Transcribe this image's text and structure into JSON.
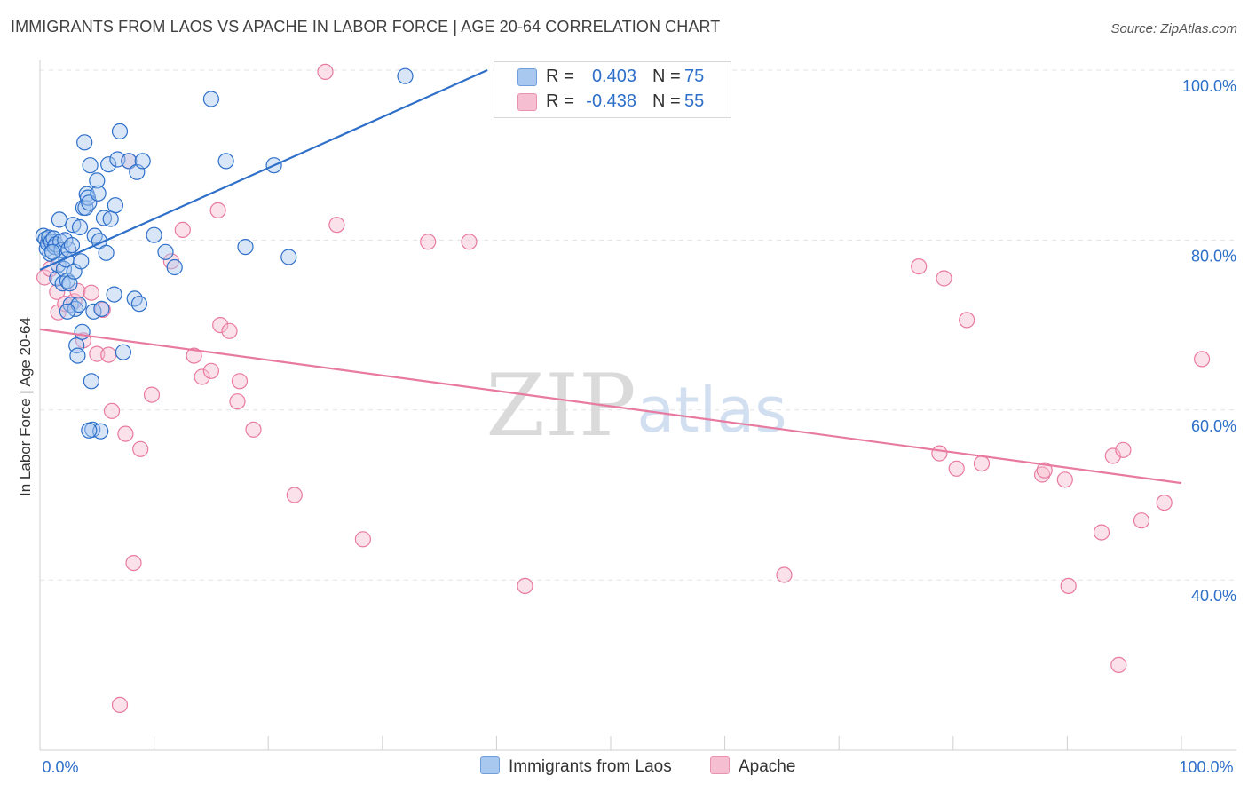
{
  "header": {
    "title": "IMMIGRANTS FROM LAOS VS APACHE IN LABOR FORCE | AGE 20-64 CORRELATION CHART",
    "source": "Source: ZipAtlas.com"
  },
  "watermark": {
    "zip": "ZIP",
    "atlas": "atlas"
  },
  "colors": {
    "blue": "#2d6fc9",
    "blue_fill": "#a9c8f0",
    "pink": "#e87aa0",
    "pink_fill": "#f6bfd1",
    "axis_label": "#2d6fc9"
  },
  "stats": [
    {
      "r_label": "R =",
      "r_value": "0.403",
      "n_label": "N =",
      "n_value": "75"
    },
    {
      "r_label": "R =",
      "r_value": "-0.438",
      "n_label": "N =",
      "n_value": "55"
    }
  ],
  "legend": {
    "series1": "Immigrants from Laos",
    "series2": "Apache"
  },
  "chart_data": {
    "type": "scatter",
    "title": "IMMIGRANTS FROM LAOS VS APACHE IN LABOR FORCE | AGE 20-64 CORRELATION CHART",
    "xlabel": "",
    "ylabel": "In Labor Force | Age 20-64",
    "xlim": [
      0,
      100
    ],
    "ylim": [
      18,
      102
    ],
    "x_tick_labels": [
      "0.0%",
      "100.0%"
    ],
    "y_ticks": [
      40,
      60,
      80,
      100
    ],
    "y_tick_labels": [
      "40.0%",
      "60.0%",
      "80.0%",
      "100.0%"
    ],
    "grid": true,
    "series": [
      {
        "name": "Immigrants from Laos",
        "r": 0.403,
        "n": 75,
        "trend": {
          "x": [
            0,
            39.2
          ],
          "y": [
            76.5,
            100
          ]
        },
        "points": [
          [
            0.3,
            80.5
          ],
          [
            0.5,
            80.1
          ],
          [
            0.6,
            79.0
          ],
          [
            0.7,
            79.6
          ],
          [
            0.8,
            80.3
          ],
          [
            0.9,
            78.4
          ],
          [
            1.0,
            79.8
          ],
          [
            1.2,
            80.2
          ],
          [
            1.3,
            79.2
          ],
          [
            1.4,
            79.5
          ],
          [
            1.5,
            75.5
          ],
          [
            1.6,
            77.1
          ],
          [
            1.7,
            82.4
          ],
          [
            1.8,
            79.8
          ],
          [
            1.9,
            78.8
          ],
          [
            2.0,
            74.9
          ],
          [
            2.1,
            76.6
          ],
          [
            2.2,
            80.0
          ],
          [
            2.3,
            77.7
          ],
          [
            2.4,
            75.2
          ],
          [
            2.5,
            78.9
          ],
          [
            2.6,
            74.9
          ],
          [
            2.7,
            72.4
          ],
          [
            2.8,
            79.4
          ],
          [
            2.9,
            81.8
          ],
          [
            3.0,
            76.3
          ],
          [
            3.1,
            71.9
          ],
          [
            3.2,
            67.6
          ],
          [
            3.3,
            66.4
          ],
          [
            3.4,
            72.4
          ],
          [
            3.5,
            81.5
          ],
          [
            3.6,
            77.5
          ],
          [
            3.7,
            69.2
          ],
          [
            3.8,
            83.8
          ],
          [
            3.9,
            91.5
          ],
          [
            4.0,
            83.8
          ],
          [
            4.1,
            85.4
          ],
          [
            4.2,
            85.0
          ],
          [
            4.3,
            84.4
          ],
          [
            4.4,
            88.8
          ],
          [
            4.5,
            63.4
          ],
          [
            4.6,
            57.7
          ],
          [
            4.7,
            71.6
          ],
          [
            4.8,
            80.5
          ],
          [
            5.0,
            87.0
          ],
          [
            5.1,
            85.5
          ],
          [
            5.2,
            79.9
          ],
          [
            5.3,
            57.5
          ],
          [
            5.4,
            71.9
          ],
          [
            5.6,
            82.6
          ],
          [
            5.8,
            78.5
          ],
          [
            6.0,
            88.9
          ],
          [
            6.2,
            82.5
          ],
          [
            6.5,
            73.6
          ],
          [
            6.8,
            89.5
          ],
          [
            7.0,
            92.8
          ],
          [
            7.3,
            66.8
          ],
          [
            7.8,
            89.3
          ],
          [
            8.3,
            73.1
          ],
          [
            8.5,
            88.0
          ],
          [
            8.7,
            72.5
          ],
          [
            9.0,
            89.3
          ],
          [
            10.0,
            80.6
          ],
          [
            11.0,
            78.6
          ],
          [
            11.8,
            76.8
          ],
          [
            15.0,
            96.6
          ],
          [
            16.3,
            89.3
          ],
          [
            18.0,
            79.2
          ],
          [
            20.5,
            88.8
          ],
          [
            21.8,
            78.0
          ],
          [
            6.6,
            84.1
          ],
          [
            1.1,
            78.6
          ],
          [
            2.4,
            71.6
          ],
          [
            4.3,
            57.6
          ],
          [
            32.0,
            99.3
          ]
        ]
      },
      {
        "name": "Apache",
        "r": -0.438,
        "n": 55,
        "trend": {
          "x": [
            0,
            100
          ],
          "y": [
            69.5,
            51.4
          ]
        },
        "points": [
          [
            0.4,
            75.6
          ],
          [
            0.9,
            76.6
          ],
          [
            1.5,
            73.9
          ],
          [
            1.6,
            71.5
          ],
          [
            2.2,
            72.5
          ],
          [
            3.0,
            72.8
          ],
          [
            3.3,
            74.0
          ],
          [
            3.8,
            68.2
          ],
          [
            4.5,
            73.8
          ],
          [
            5.0,
            66.6
          ],
          [
            5.5,
            71.8
          ],
          [
            6.0,
            66.5
          ],
          [
            6.3,
            59.9
          ],
          [
            7.0,
            25.3
          ],
          [
            7.5,
            57.2
          ],
          [
            7.8,
            89.3
          ],
          [
            8.2,
            42.0
          ],
          [
            8.8,
            55.4
          ],
          [
            9.8,
            61.8
          ],
          [
            11.5,
            77.5
          ],
          [
            12.5,
            81.2
          ],
          [
            13.5,
            66.4
          ],
          [
            14.2,
            63.9
          ],
          [
            15.0,
            64.6
          ],
          [
            15.6,
            83.5
          ],
          [
            15.8,
            70.0
          ],
          [
            16.6,
            69.3
          ],
          [
            17.3,
            61.0
          ],
          [
            17.5,
            63.4
          ],
          [
            18.7,
            57.7
          ],
          [
            22.3,
            50.0
          ],
          [
            25.0,
            99.8
          ],
          [
            26.0,
            81.8
          ],
          [
            28.3,
            44.8
          ],
          [
            34.0,
            79.8
          ],
          [
            37.6,
            79.8
          ],
          [
            42.5,
            39.3
          ],
          [
            65.2,
            40.6
          ],
          [
            77.0,
            76.9
          ],
          [
            78.8,
            54.9
          ],
          [
            79.2,
            75.5
          ],
          [
            80.3,
            53.1
          ],
          [
            81.2,
            70.6
          ],
          [
            82.5,
            53.7
          ],
          [
            87.8,
            52.4
          ],
          [
            88.0,
            52.9
          ],
          [
            89.8,
            51.8
          ],
          [
            90.1,
            39.3
          ],
          [
            93.0,
            45.6
          ],
          [
            94.0,
            54.6
          ],
          [
            94.5,
            30.0
          ],
          [
            94.9,
            55.3
          ],
          [
            96.5,
            47.0
          ],
          [
            98.5,
            49.1
          ],
          [
            101.8,
            66.0
          ]
        ]
      }
    ]
  }
}
